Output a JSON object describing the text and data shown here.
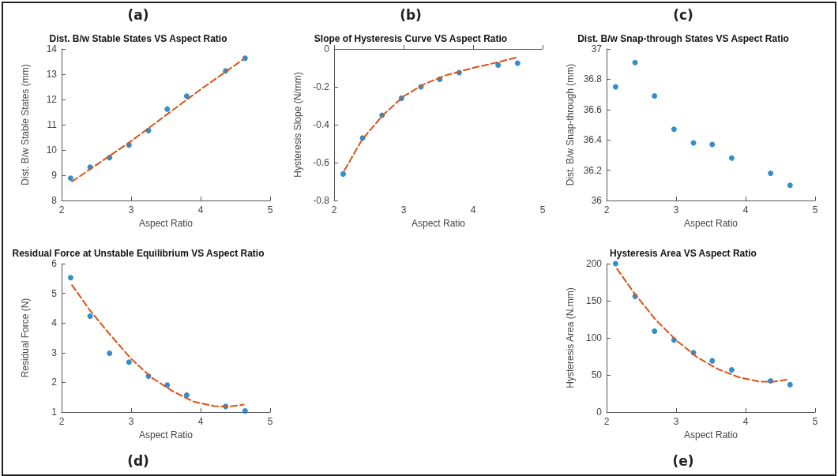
{
  "chart_data": [
    {
      "type": "scatter",
      "title": "Dist. B/w Stable States VS Aspect Ratio",
      "xlabel": "Aspect Ratio",
      "ylabel": "Dist. B/w Stable States (mm)",
      "annotations": [
        "(a)"
      ],
      "xlim": [
        2,
        5
      ],
      "xticks": [
        2,
        3,
        4,
        5
      ],
      "ylim": [
        8,
        14
      ],
      "yticks": [
        8,
        9,
        10,
        11,
        12,
        13,
        14
      ],
      "grid": false,
      "series": [
        {
          "color": "#0072bd",
          "marker": "circle",
          "x": [
            2.13,
            2.41,
            2.69,
            2.97,
            3.25,
            3.52,
            3.8,
            4.36,
            4.64
          ],
          "values": [
            8.88,
            9.32,
            9.7,
            10.2,
            10.77,
            11.62,
            12.13,
            13.13,
            13.63
          ]
        },
        {
          "type": "line",
          "color": "#d95319",
          "marker": "none",
          "line_style": "dashed",
          "x": [
            2.15,
            3.0,
            4.0,
            4.62
          ],
          "values": [
            8.75,
            10.35,
            12.4,
            13.6
          ]
        }
      ]
    },
    {
      "type": "scatter",
      "title": "Slope of Hysteresis Curve VS Aspect Ratio",
      "xlabel": "Aspect Ratio",
      "ylabel": "Hysteresis Slope (N/mm)",
      "annotations": [
        "(b)"
      ],
      "xlim": [
        2,
        5
      ],
      "xticks": [
        2,
        3,
        4,
        5
      ],
      "ylim": [
        -0.8,
        0
      ],
      "yticks": [
        -0.8,
        -0.6,
        -0.4,
        -0.2,
        0
      ],
      "grid": false,
      "series": [
        {
          "color": "#0072bd",
          "marker": "circle",
          "x": [
            2.13,
            2.41,
            2.69,
            2.97,
            3.25,
            3.52,
            3.8,
            4.36,
            4.64
          ],
          "values": [
            -0.66,
            -0.47,
            -0.35,
            -0.26,
            -0.2,
            -0.16,
            -0.125,
            -0.085,
            -0.075
          ]
        },
        {
          "type": "line",
          "color": "#d95319",
          "marker": "none",
          "line_style": "dashed",
          "x": [
            2.15,
            2.4,
            2.7,
            3.0,
            3.3,
            3.6,
            4.0,
            4.3,
            4.62
          ],
          "values": [
            -0.64,
            -0.48,
            -0.35,
            -0.25,
            -0.185,
            -0.14,
            -0.1,
            -0.075,
            -0.045
          ]
        }
      ]
    },
    {
      "type": "scatter",
      "title": "Dist. B/w Snap-through States VS Aspect Ratio",
      "xlabel": "Aspect Ratio",
      "ylabel": "Dist. B/w Snap-through (mm)",
      "annotations": [
        "(c)"
      ],
      "xlim": [
        2,
        5
      ],
      "xticks": [
        2,
        3,
        4,
        5
      ],
      "ylim": [
        36,
        37
      ],
      "yticks": [
        36,
        36.2,
        36.4,
        36.6,
        36.8,
        37
      ],
      "grid": false,
      "series": [
        {
          "color": "#0072bd",
          "marker": "circle",
          "x": [
            2.13,
            2.41,
            2.69,
            2.97,
            3.25,
            3.52,
            3.8,
            4.36,
            4.64
          ],
          "values": [
            36.75,
            36.91,
            36.69,
            36.47,
            36.38,
            36.37,
            36.28,
            36.18,
            36.1
          ]
        }
      ]
    },
    {
      "type": "scatter",
      "title": "Residual Force at Unstable Equilibrium VS Aspect Ratio",
      "xlabel": "Aspect Ratio",
      "ylabel": "Residual Force (N)",
      "annotations": [
        "(d)"
      ],
      "xlim": [
        2,
        5
      ],
      "xticks": [
        2,
        3,
        4,
        5
      ],
      "ylim": [
        1,
        6
      ],
      "yticks": [
        1,
        2,
        3,
        4,
        5,
        6
      ],
      "grid": false,
      "series": [
        {
          "color": "#0072bd",
          "marker": "circle",
          "x": [
            2.13,
            2.41,
            2.69,
            2.97,
            3.25,
            3.52,
            3.8,
            4.36,
            4.64
          ],
          "values": [
            5.53,
            4.23,
            2.98,
            2.68,
            2.21,
            1.91,
            1.57,
            1.19,
            1.04
          ]
        },
        {
          "type": "line",
          "color": "#d95319",
          "marker": "none",
          "line_style": "dashed",
          "x": [
            2.15,
            2.4,
            2.7,
            3.0,
            3.3,
            3.6,
            3.9,
            4.2,
            4.4,
            4.62
          ],
          "values": [
            5.28,
            4.45,
            3.6,
            2.8,
            2.15,
            1.7,
            1.35,
            1.2,
            1.18,
            1.25
          ]
        }
      ]
    },
    {
      "type": "scatter",
      "title": "Hysteresis Area VS Aspect Ratio",
      "xlabel": "Aspect Ratio",
      "ylabel": "Hysteresis Area (N.mm)",
      "annotations": [
        "(e)"
      ],
      "xlim": [
        2,
        5
      ],
      "xticks": [
        2,
        3,
        4,
        5
      ],
      "ylim": [
        0,
        200
      ],
      "yticks": [
        0,
        50,
        100,
        150,
        200
      ],
      "grid": false,
      "series": [
        {
          "color": "#0072bd",
          "marker": "circle",
          "x": [
            2.13,
            2.41,
            2.69,
            2.97,
            3.25,
            3.52,
            3.8,
            4.36,
            4.64
          ],
          "values": [
            200,
            156,
            109,
            97,
            80,
            69,
            57,
            42,
            37
          ]
        },
        {
          "type": "line",
          "color": "#d95319",
          "marker": "none",
          "line_style": "dashed",
          "x": [
            2.15,
            2.4,
            2.7,
            3.0,
            3.3,
            3.6,
            3.9,
            4.2,
            4.4,
            4.62
          ],
          "values": [
            193,
            160,
            125,
            97,
            74,
            58,
            47,
            41,
            41,
            44
          ]
        }
      ]
    }
  ]
}
